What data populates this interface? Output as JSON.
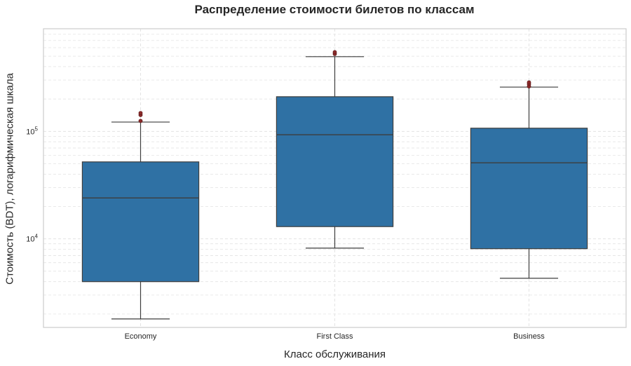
{
  "chart_data": {
    "type": "box",
    "title": "Распределение стоимости билетов по классам",
    "xlabel": "Класс обслуживания",
    "ylabel": "Стоимость (BDT), логарифмическая шкала",
    "yscale": "log",
    "ylim": [
      1500,
      900000
    ],
    "categories": [
      "Economy",
      "First Class",
      "Business"
    ],
    "boxes": [
      {
        "category": "Economy",
        "whisker_low": 1800,
        "q1": 4000,
        "median": 24000,
        "q3": 52000,
        "whisker_high": 122000,
        "outliers": [
          125000,
          142000,
          148000
        ]
      },
      {
        "category": "First Class",
        "whisker_low": 8200,
        "q1": 13000,
        "median": 93000,
        "q3": 210000,
        "whisker_high": 495000,
        "outliers": [
          525000,
          545000
        ]
      },
      {
        "category": "Business",
        "whisker_low": 4300,
        "q1": 8100,
        "median": 51000,
        "q3": 107000,
        "whisker_high": 258000,
        "outliers": [
          262000,
          275000,
          285000
        ]
      }
    ],
    "y_ticks": [
      {
        "base": "10",
        "exp": "4",
        "value": 10000
      },
      {
        "base": "10",
        "exp": "5",
        "value": 100000
      }
    ],
    "grid": true,
    "colors": {
      "box": "#2f71a4",
      "edge": "#3d3d3d",
      "outlier": "#8b2a2a",
      "grid": "#e3e3e3",
      "frame": "#cccccc"
    }
  }
}
